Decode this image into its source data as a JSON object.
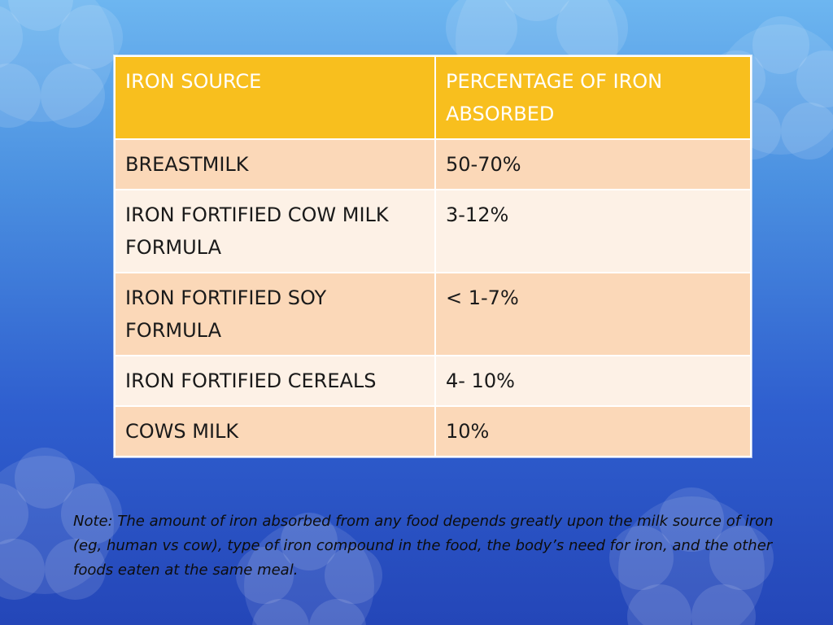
{
  "table": {
    "headers": [
      "IRON SOURCE",
      "PERCENTAGE OF IRON ABSORBED"
    ],
    "rows": [
      [
        "BREASTMILK",
        "50-70%"
      ],
      [
        "IRON FORTIFIED COW MILK FORMULA",
        "3-12%"
      ],
      [
        "IRON FORTIFIED SOY FORMULA",
        "< 1-7%"
      ],
      [
        "IRON FORTIFIED CEREALS",
        "4- 10%"
      ],
      [
        "COWS MILK",
        "10%"
      ]
    ]
  },
  "note": "Note: The amount of iron absorbed from any food depends greatly upon the milk source of iron (eg, human vs cow), type of iron compound in the food, the body’s need for iron, and the other foods eaten at the same meal.",
  "colors": {
    "header_bg": "#f8bf1e",
    "row_dark_bg": "#fbd8b8",
    "row_light_bg": "#fdf1e6",
    "background_top": "#6db6f0",
    "background_bottom": "#2446b8"
  }
}
